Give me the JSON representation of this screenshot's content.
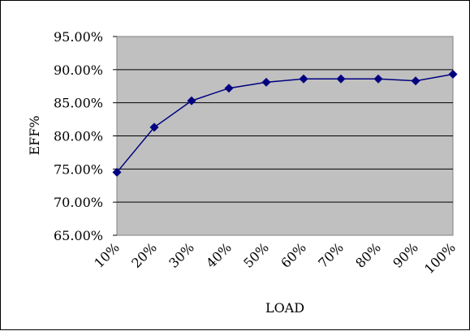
{
  "chart_data": {
    "type": "line",
    "title": "",
    "xlabel": "LOAD",
    "ylabel": "EFF%",
    "categories": [
      "10%",
      "20%",
      "30%",
      "40%",
      "50%",
      "60%",
      "70%",
      "80%",
      "90%",
      "100%"
    ],
    "series": [
      {
        "values": [
          74.5,
          81.3,
          85.3,
          87.2,
          88.1,
          88.6,
          88.6,
          88.6,
          88.3,
          89.3
        ]
      }
    ],
    "ylim": [
      65,
      95
    ],
    "yticks": [
      "65.00%",
      "70.00%",
      "75.00%",
      "80.00%",
      "85.00%",
      "90.00%",
      "95.00%"
    ],
    "grid": true,
    "legend": "none",
    "colors": {
      "plot_background": "#c0c0c0",
      "series": "#000080",
      "grid": "#000000"
    }
  }
}
